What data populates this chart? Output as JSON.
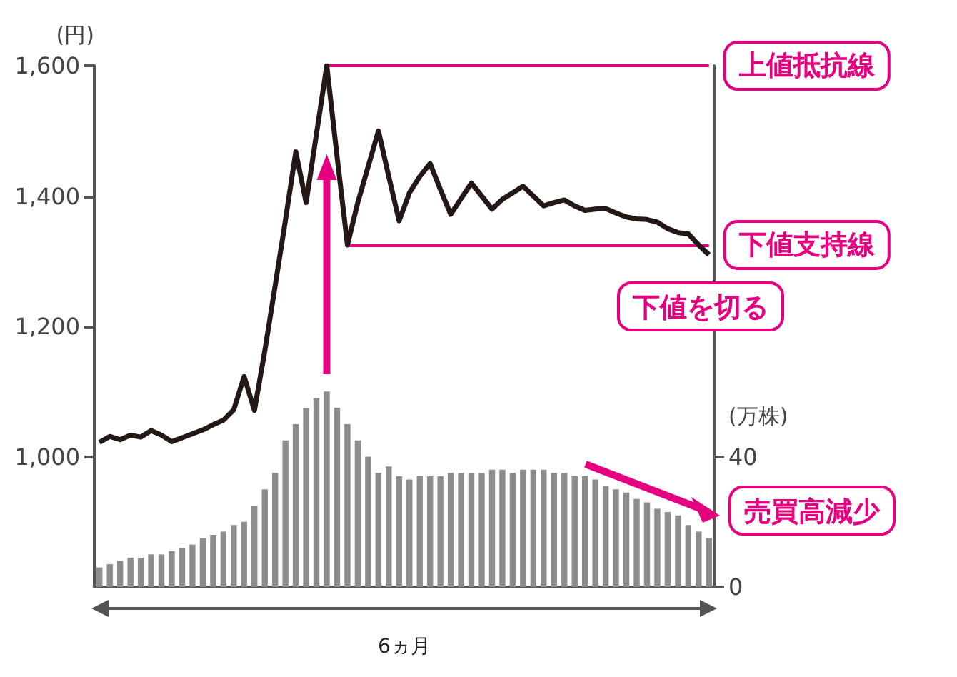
{
  "chart_data": {
    "type": "line",
    "ylabel": "(円)",
    "y2label": "(万株)",
    "xlabel": "6ヵ月",
    "categories": [
      null,
      null,
      null,
      null,
      null,
      null,
      null,
      null,
      null,
      null,
      null,
      null,
      null,
      null,
      null,
      null,
      null,
      null,
      null,
      null,
      null,
      null,
      null,
      null,
      null,
      null,
      null,
      null,
      null,
      null,
      null,
      null,
      null,
      null,
      null,
      null,
      null,
      null,
      null,
      null,
      null,
      null,
      null,
      null,
      null,
      null,
      null,
      null,
      null,
      null,
      null,
      null,
      null,
      null,
      null,
      null,
      null,
      null,
      null,
      null
    ],
    "series": [
      {
        "color": "#231815",
        "values": [
          1022,
          1031,
          1026,
          1033,
          1030,
          1040,
          1033,
          1023,
          1029,
          1035,
          1041,
          1049,
          1056,
          1072,
          1123,
          1071,
          1162,
          1262,
          1363,
          1468,
          1390,
          1495,
          1600,
          1460,
          1325,
          1390,
          1445,
          1500,
          1430,
          1362,
          1405,
          1430,
          1450,
          1410,
          1372,
          1396,
          1420,
          1400,
          1380,
          1395,
          1405,
          1415,
          1400,
          1385,
          1390,
          1394,
          1385,
          1378,
          1380,
          1381,
          1374,
          1368,
          1365,
          1364,
          1360,
          1350,
          1344,
          1342,
          1325,
          1310
        ]
      },
      {
        "type": "bar",
        "axis": "y2",
        "color": "#8c8c8c",
        "values": [
          6,
          7,
          8,
          9,
          9,
          10,
          10,
          11,
          12,
          13,
          15,
          16,
          17,
          19,
          20,
          25,
          30,
          35,
          45,
          50,
          55,
          58,
          60,
          55,
          50,
          45,
          40,
          35,
          37,
          34,
          33,
          34,
          34,
          34,
          35,
          35,
          35,
          35,
          36,
          36,
          35,
          36,
          36,
          36,
          35,
          35,
          34,
          34,
          33,
          31,
          30,
          29,
          27,
          26,
          24,
          23,
          22,
          19,
          17,
          15
        ]
      }
    ],
    "ylim": [
      800,
      1600
    ],
    "yticks": [
      {
        "value": 1000,
        "label": "1,000"
      },
      {
        "value": 1200,
        "label": "1,200"
      },
      {
        "value": 1400,
        "label": "1,400"
      },
      {
        "value": 1600,
        "label": "1,600"
      }
    ],
    "y2lim": [
      0,
      160
    ],
    "y2ticks": [
      0,
      40
    ],
    "grid": false,
    "marker": "none",
    "ref_lines": [
      {
        "axis": "y",
        "value": 1600,
        "label": "上値抵抗線",
        "color": "#e4007f"
      },
      {
        "axis": "y",
        "value": 1325,
        "label": "下値支持線",
        "color": "#e4007f"
      }
    ],
    "annotations": [
      "下値を切る",
      "売買高減少"
    ]
  }
}
